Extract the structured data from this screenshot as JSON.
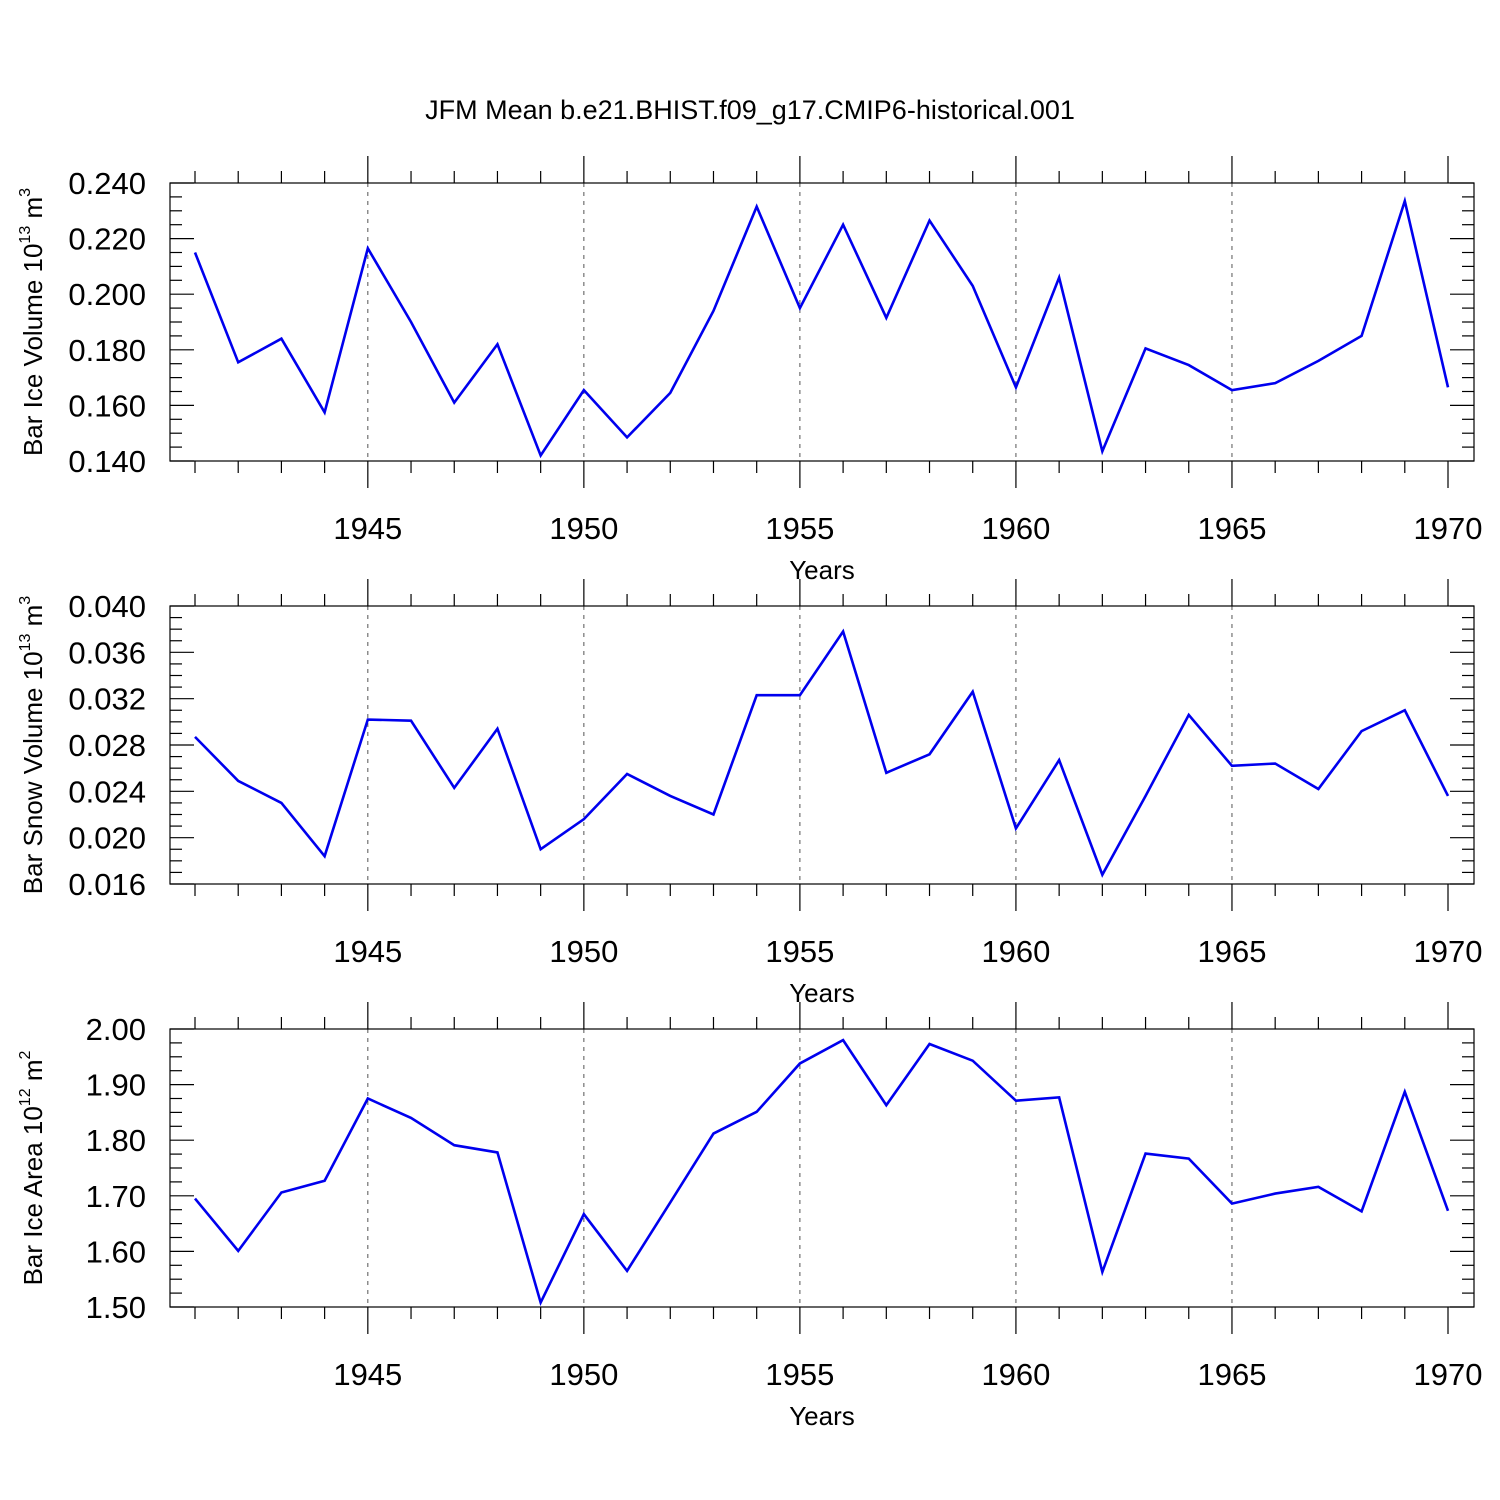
{
  "title": "JFM Mean b.e21.BHIST.f09_g17.CMIP6-historical.001",
  "colors": {
    "series": "#0000ee",
    "frame": "#000000",
    "grid": "#555555"
  },
  "chart_data": [
    {
      "type": "line",
      "id": "ice-volume",
      "ylabel": {
        "base": "Bar Ice Volume 10",
        "sup1": "13",
        "unit": " m",
        "sup2": "3"
      },
      "xlabel": "Years",
      "xlim": [
        1941,
        1970
      ],
      "ylim": [
        0.14,
        0.24
      ],
      "yticks": [
        "0.140",
        "0.160",
        "0.180",
        "0.200",
        "0.220",
        "0.240"
      ],
      "yminor": 0.005,
      "xticks": [
        "1945",
        "1950",
        "1955",
        "1960",
        "1965",
        "1970"
      ],
      "grid_x": [
        1945,
        1950,
        1955,
        1960,
        1965
      ],
      "x": [
        1941,
        1942,
        1943,
        1944,
        1945,
        1946,
        1947,
        1948,
        1949,
        1950,
        1951,
        1952,
        1953,
        1954,
        1955,
        1956,
        1957,
        1958,
        1959,
        1960,
        1961,
        1962,
        1963,
        1964,
        1965,
        1966,
        1967,
        1968,
        1969,
        1970
      ],
      "series": [
        {
          "name": "Bar Ice Volume",
          "values": [
            0.215,
            0.1755,
            0.184,
            0.1575,
            0.2165,
            0.19,
            0.161,
            0.182,
            0.142,
            0.1655,
            0.1485,
            0.1645,
            0.194,
            0.2315,
            0.195,
            0.225,
            0.1915,
            0.2265,
            0.203,
            0.1665,
            0.206,
            0.1435,
            0.1805,
            0.1745,
            0.1655,
            0.168,
            0.176,
            0.185,
            0.2335,
            0.1665
          ]
        }
      ]
    },
    {
      "type": "line",
      "id": "snow-volume",
      "ylabel": {
        "base": "Bar Snow Volume 10",
        "sup1": "13",
        "unit": " m",
        "sup2": "3"
      },
      "xlabel": "Years",
      "xlim": [
        1941,
        1970
      ],
      "ylim": [
        0.016,
        0.04
      ],
      "yticks": [
        "0.016",
        "0.020",
        "0.024",
        "0.028",
        "0.032",
        "0.036",
        "0.040"
      ],
      "yminor": 0.001,
      "xticks": [
        "1945",
        "1950",
        "1955",
        "1960",
        "1965",
        "1970"
      ],
      "grid_x": [
        1945,
        1950,
        1955,
        1960,
        1965
      ],
      "x": [
        1941,
        1942,
        1943,
        1944,
        1945,
        1946,
        1947,
        1948,
        1949,
        1950,
        1951,
        1952,
        1953,
        1954,
        1955,
        1956,
        1957,
        1958,
        1959,
        1960,
        1961,
        1962,
        1963,
        1964,
        1965,
        1966,
        1967,
        1968,
        1969,
        1970
      ],
      "series": [
        {
          "name": "Bar Snow Volume",
          "values": [
            0.0287,
            0.0249,
            0.023,
            0.0184,
            0.0302,
            0.0301,
            0.0243,
            0.0294,
            0.019,
            0.0216,
            0.0255,
            0.0236,
            0.022,
            0.0323,
            0.0323,
            0.0378,
            0.0256,
            0.0272,
            0.0326,
            0.0208,
            0.0267,
            0.0168,
            0.0236,
            0.0306,
            0.0262,
            0.0264,
            0.0242,
            0.0292,
            0.031,
            0.0236
          ]
        }
      ]
    },
    {
      "type": "line",
      "id": "ice-area",
      "ylabel": {
        "base": "Bar Ice Area 10",
        "sup1": "12",
        "unit": " m",
        "sup2": "2"
      },
      "xlabel": "Years",
      "xlim": [
        1941,
        1970
      ],
      "ylim": [
        1.5,
        2.0
      ],
      "yticks": [
        "1.50",
        "1.60",
        "1.70",
        "1.80",
        "1.90",
        "2.00"
      ],
      "yminor": 0.025,
      "xticks": [
        "1945",
        "1950",
        "1955",
        "1960",
        "1965",
        "1970"
      ],
      "grid_x": [
        1945,
        1950,
        1955,
        1960,
        1965
      ],
      "x": [
        1941,
        1942,
        1943,
        1944,
        1945,
        1946,
        1947,
        1948,
        1949,
        1950,
        1951,
        1952,
        1953,
        1954,
        1955,
        1956,
        1957,
        1958,
        1959,
        1960,
        1961,
        1962,
        1963,
        1964,
        1965,
        1966,
        1967,
        1968,
        1969,
        1970
      ],
      "series": [
        {
          "name": "Bar Ice Area",
          "values": [
            1.695,
            1.601,
            1.706,
            1.727,
            1.875,
            1.84,
            1.791,
            1.778,
            1.508,
            1.667,
            1.565,
            1.688,
            1.812,
            1.851,
            1.938,
            1.98,
            1.863,
            1.973,
            1.943,
            1.871,
            1.877,
            1.563,
            1.776,
            1.767,
            1.686,
            1.704,
            1.716,
            1.672,
            1.887,
            1.673
          ]
        }
      ]
    }
  ]
}
